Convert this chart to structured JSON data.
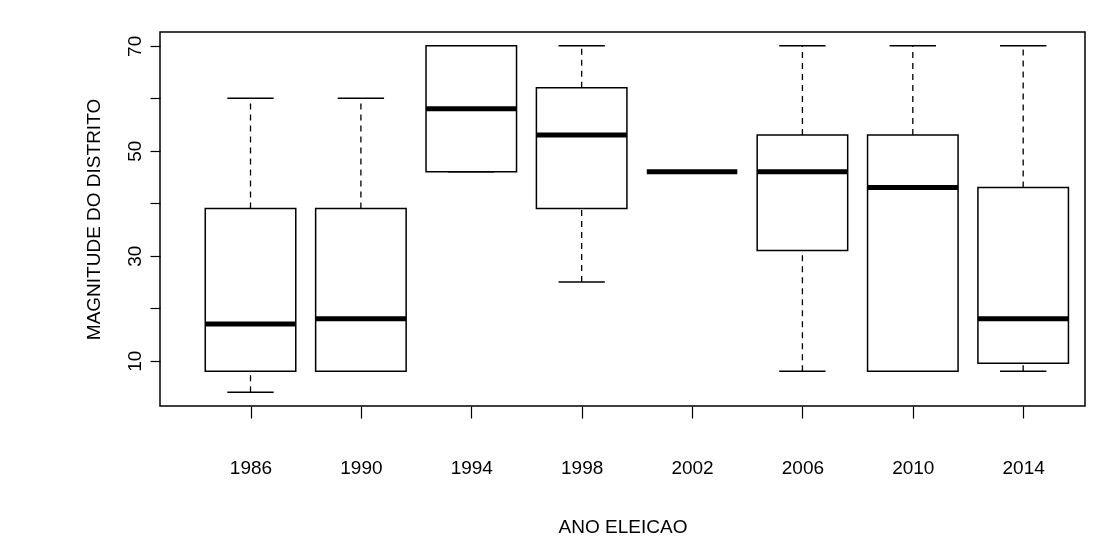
{
  "chart_data": {
    "type": "box",
    "xlabel": "ANO ELEICAO",
    "ylabel": "MAGNITUDE DO DISTRITO",
    "categories": [
      "1986",
      "1990",
      "1994",
      "1998",
      "2002",
      "2006",
      "2010",
      "2014"
    ],
    "boxes": [
      {
        "low": 4,
        "q1": 8,
        "median": 17,
        "q3": 39,
        "high": 60
      },
      {
        "low": 8,
        "q1": 8,
        "median": 18,
        "q3": 39,
        "high": 60
      },
      {
        "low": 46,
        "q1": 46,
        "median": 58,
        "q3": 70,
        "high": 70
      },
      {
        "low": 25,
        "q1": 39,
        "median": 53,
        "q3": 62,
        "high": 70
      },
      {
        "low": 46,
        "q1": 46,
        "median": 46,
        "q3": 46,
        "high": 46
      },
      {
        "low": 8,
        "q1": 31,
        "median": 46,
        "q3": 53,
        "high": 70
      },
      {
        "low": 8,
        "q1": 8,
        "median": 43,
        "q3": 53,
        "high": 70
      },
      {
        "low": 8,
        "q1": 9.5,
        "median": 18,
        "q3": 43,
        "high": 70
      }
    ],
    "ylim": [
      1.36,
      72.64
    ],
    "yticks": [
      10,
      {
        "value": 20,
        "label": null
      },
      30,
      {
        "value": 40,
        "label": null
      },
      50,
      {
        "value": 60,
        "label": null
      },
      70
    ]
  }
}
